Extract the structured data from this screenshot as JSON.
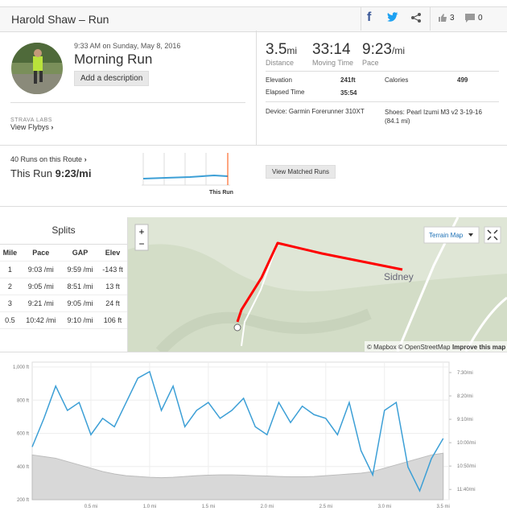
{
  "header": {
    "title": "Harold Shaw – Run",
    "kudos": "3",
    "comments": "0"
  },
  "activity": {
    "datetime": "9:33 AM on Sunday, May 8, 2016",
    "name": "Morning Run",
    "add_description": "Add a description",
    "labs": "STRAVA LABS",
    "flybys": "View Flybys"
  },
  "stats": {
    "distance": {
      "value": "3.5",
      "unit": "mi",
      "label": "Distance"
    },
    "moving_time": {
      "value": "33:14",
      "label": "Moving Time"
    },
    "pace": {
      "value": "9:23",
      "unit": "/mi",
      "label": "Pace"
    },
    "details": [
      {
        "label": "Elevation",
        "value": "241ft"
      },
      {
        "label": "Calories",
        "value": "499"
      },
      {
        "label": "Elapsed Time",
        "value": "35:54"
      }
    ],
    "device": "Device: Garmin Forerunner 310XT",
    "shoes": "Shoes: Pearl Izumi M3 v2 3-19-16 (84.1 mi)"
  },
  "route": {
    "runs": "40 Runs on this Route",
    "this_run_label": "This Run",
    "this_run_pace": "9:23/mi",
    "marker": "This Run",
    "button": "View Matched Runs"
  },
  "splits": {
    "title": "Splits",
    "columns": [
      "Mile",
      "Pace",
      "GAP",
      "Elev"
    ],
    "rows": [
      [
        "1",
        "9:03 /mi",
        "9:59 /mi",
        "-143 ft"
      ],
      [
        "2",
        "9:05 /mi",
        "8:51 /mi",
        "13 ft"
      ],
      [
        "3",
        "9:21 /mi",
        "9:05 /mi",
        "24 ft"
      ],
      [
        "0.5",
        "10:42 /mi",
        "9:10 /mi",
        "106 ft"
      ]
    ]
  },
  "map": {
    "zoom_in": "+",
    "zoom_out": "−",
    "place": "Sidney",
    "layer": "Terrain Map",
    "attribution": "© Mapbox © OpenStreetMap",
    "improve": "Improve this map"
  },
  "profile_chart": {
    "type": "line",
    "x": [
      0,
      0.1,
      0.2,
      0.3,
      0.4,
      0.5,
      0.6,
      0.7,
      0.8,
      0.9,
      1.0,
      1.1,
      1.2,
      1.3,
      1.4,
      1.5,
      1.6,
      1.7,
      1.8,
      1.9,
      2.0,
      2.1,
      2.2,
      2.3,
      2.4,
      2.5,
      2.6,
      2.7,
      2.8,
      2.9,
      3.0,
      3.1,
      3.2,
      3.3,
      3.4,
      3.5
    ],
    "xlim": [
      0,
      3.55
    ],
    "xticks": [
      {
        "value": 0.5,
        "label": "0.5 mi"
      },
      {
        "value": 1.0,
        "label": "1.0 mi"
      },
      {
        "value": 1.5,
        "label": "1.5 mi"
      },
      {
        "value": 2.0,
        "label": "2.0 mi"
      },
      {
        "value": 2.5,
        "label": "2.5 mi"
      },
      {
        "value": 3.0,
        "label": "3.0 mi"
      },
      {
        "value": 3.5,
        "label": "3.5 mi"
      }
    ],
    "ylim": [
      200,
      1000
    ],
    "yticks": [
      {
        "value": 200,
        "label": "200 ft"
      },
      {
        "value": 400,
        "label": "400 ft"
      },
      {
        "value": 600,
        "label": "600 ft"
      },
      {
        "value": 800,
        "label": "800 ft"
      },
      {
        "value": 1000,
        "label": "1,000 ft"
      }
    ],
    "y2lim": [
      722,
      438
    ],
    "y2ticks": [
      {
        "value": 450,
        "label": "7:30/mi"
      },
      {
        "value": 500,
        "label": "8:20/mi"
      },
      {
        "value": 550,
        "label": "9:10/mi"
      },
      {
        "value": 600,
        "label": "10:00/mi"
      },
      {
        "value": 650,
        "label": "10:50/mi"
      },
      {
        "value": 700,
        "label": "11:40/mi"
      }
    ],
    "grid": true,
    "series": [
      {
        "color": "#d8d8d8",
        "fill": true,
        "values": [
          470,
          460,
          450,
          430,
          410,
          390,
          370,
          355,
          345,
          340,
          335,
          333,
          335,
          340,
          345,
          348,
          350,
          350,
          348,
          345,
          343,
          340,
          338,
          338,
          340,
          345,
          350,
          355,
          360,
          370,
          390,
          410,
          430,
          450,
          470,
          480
        ]
      },
      {
        "color": "#3c9fd6",
        "axis": "y2",
        "values": [
          609,
          548,
          479,
          531,
          514,
          583,
          548,
          566,
          514,
          462,
          448,
          531,
          479,
          566,
          531,
          514,
          548,
          531,
          505,
          566,
          583,
          514,
          557,
          522,
          540,
          548,
          583,
          514,
          617,
          669,
          531,
          514,
          652,
          703,
          634,
          591
        ]
      }
    ]
  }
}
